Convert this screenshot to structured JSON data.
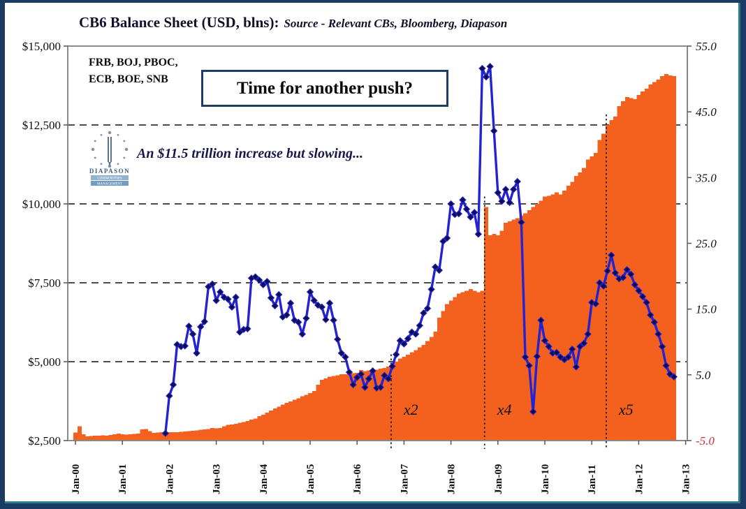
{
  "window": {
    "bg": "#ffffff",
    "border": "#1b3a64",
    "accent_teal": "#2a7e8c"
  },
  "header": {
    "title": "CB6 Balance Sheet (USD, blns):",
    "source": "Source - Relevant CBs, Bloomberg, Diapason"
  },
  "notes": {
    "cb_line1": "FRB, BOJ, PBOC,",
    "cb_line2": "ECB, BOE, SNB",
    "callout": "Time for another push?",
    "subtitle": "An $11.5 trillion increase but slowing..."
  },
  "logo": {
    "line1": "DIAPASON",
    "line2": "COMMODITIES",
    "line3": "MANAGEMENT"
  },
  "chart_data": {
    "type": "bar+line combo",
    "title": "CB6 Balance Sheet (USD, blns)",
    "x_tick_labels": [
      "Jan-00",
      "Jan-01",
      "Jan-02",
      "Jan-03",
      "Jan-04",
      "Jan-05",
      "Jan-06",
      "Jan-07",
      "Jan-08",
      "Jan-09",
      "Jan-10",
      "Jan-11",
      "Jan-12",
      "Jan-13"
    ],
    "left_axis": {
      "tick_labels": [
        "$15,000",
        "$12,500",
        "$10,000",
        "$7,500",
        "$5,000",
        "$2,500"
      ],
      "tick_values": [
        15000,
        12500,
        10000,
        7500,
        5000,
        2500
      ],
      "min": 2500,
      "max": 15000,
      "units": "USD blns"
    },
    "right_axis": {
      "tick_labels": [
        "55.0",
        "45.0",
        "35.0",
        "25.0",
        "15.0",
        "5.0",
        "-5.0"
      ],
      "tick_values": [
        55,
        45,
        35,
        25,
        15,
        5,
        -5
      ],
      "min": -5,
      "max": 55,
      "negative_tick_color": "#d03030",
      "text_color": "#111111"
    },
    "grid_values": [
      12500,
      10000,
      7500,
      5000
    ],
    "bars": {
      "name": "CB6 aggregate balance sheet (USD bln, left axis)",
      "color": "#f4601e",
      "start_month_index": 0,
      "months_per_pixel_note": "monthly bars Jan-00 onward",
      "monthly_values": [
        2750,
        2950,
        2700,
        2630,
        2640,
        2660,
        2650,
        2670,
        2660,
        2680,
        2700,
        2720,
        2700,
        2690,
        2700,
        2710,
        2720,
        2850,
        2870,
        2800,
        2740,
        2750,
        2760,
        2780,
        2770,
        2765,
        2770,
        2780,
        2790,
        2800,
        2810,
        2820,
        2840,
        2850,
        2860,
        2900,
        2890,
        2900,
        2950,
        3000,
        3010,
        3030,
        3060,
        3090,
        3120,
        3160,
        3200,
        3270,
        3320,
        3380,
        3450,
        3520,
        3570,
        3640,
        3690,
        3740,
        3790,
        3840,
        3900,
        3950,
        4000,
        4070,
        4270,
        4420,
        4470,
        4520,
        4550,
        4570,
        4600,
        4600,
        4620,
        4640,
        4650,
        4730,
        4700,
        4720,
        4740,
        4750,
        4780,
        4800,
        4850,
        4900,
        5000,
        5100,
        5150,
        5220,
        5300,
        5370,
        5450,
        5530,
        5650,
        5790,
        5950,
        6390,
        6600,
        6830,
        6940,
        7050,
        7160,
        7200,
        7250,
        7300,
        7250,
        7200,
        7250,
        9900,
        9000,
        9050,
        9000,
        9150,
        9400,
        9450,
        9500,
        9550,
        9630,
        9700,
        9800,
        9900,
        10000,
        10100,
        10230,
        10250,
        10300,
        10360,
        10300,
        10420,
        10580,
        10700,
        10890,
        11000,
        11140,
        11400,
        11500,
        11620,
        12020,
        12220,
        12500,
        12650,
        12770,
        13100,
        13250,
        13380,
        13350,
        13320,
        13450,
        13560,
        13650,
        13780,
        13860,
        13940,
        14050,
        14110,
        14070,
        14050
      ]
    },
    "line": {
      "name": "CB6 balance sheet growth, % (right axis)",
      "color": "#2323d3",
      "marker_color": "#0e0e4e",
      "start_month_index": 23,
      "monthly_values": [
        -3.9,
        1.8,
        3.5,
        9.6,
        9.3,
        9.4,
        12.4,
        11.2,
        8.3,
        12.3,
        13.1,
        18.4,
        18.8,
        16.3,
        17.6,
        16.8,
        16.5,
        15.3,
        16.8,
        11.5,
        11.9,
        12.0,
        19.7,
        19.9,
        19.4,
        18.7,
        19.2,
        16.7,
        15.5,
        17.2,
        13.8,
        14.1,
        15.9,
        13.3,
        13.0,
        11.2,
        13.6,
        17.6,
        16.3,
        15.6,
        15.3,
        13.4,
        15.9,
        13.3,
        10.4,
        8.3,
        7.7,
        5.4,
        3.5,
        4.6,
        5.1,
        3.1,
        4.4,
        5.6,
        3.0,
        3.1,
        4.9,
        4.4,
        6.3,
        8.1,
        10.2,
        9.7,
        10.5,
        11.5,
        11.2,
        12.5,
        14.4,
        15.1,
        18.0,
        21.4,
        20.9,
        25.3,
        25.8,
        31.0,
        29.4,
        29.5,
        31.6,
        30.2,
        29.0,
        29.7,
        26.4,
        51.6,
        50.3,
        51.9,
        42.1,
        32.7,
        31.4,
        33.2,
        31.2,
        33.2,
        34.4,
        28.2,
        7.7,
        6.4,
        -0.6,
        7.8,
        13.3,
        10.2,
        9.3,
        8.3,
        8.4,
        7.7,
        7.3,
        7.7,
        8.9,
        6.2,
        9.3,
        9.8,
        11.2,
        16.0,
        15.8,
        19.0,
        18.5,
        20.8,
        23.2,
        20.5,
        19.6,
        19.8,
        21.0,
        20.3,
        18.7,
        17.8,
        16.9,
        16.0,
        14.1,
        13.0,
        11.2,
        9.3,
        6.4,
        5.1,
        4.7
      ]
    },
    "vertical_markers": [
      {
        "label": "x2",
        "month": 80.7
      },
      {
        "label": "x4",
        "month": 104.6
      },
      {
        "label": "x5",
        "month": 135.7
      }
    ]
  }
}
